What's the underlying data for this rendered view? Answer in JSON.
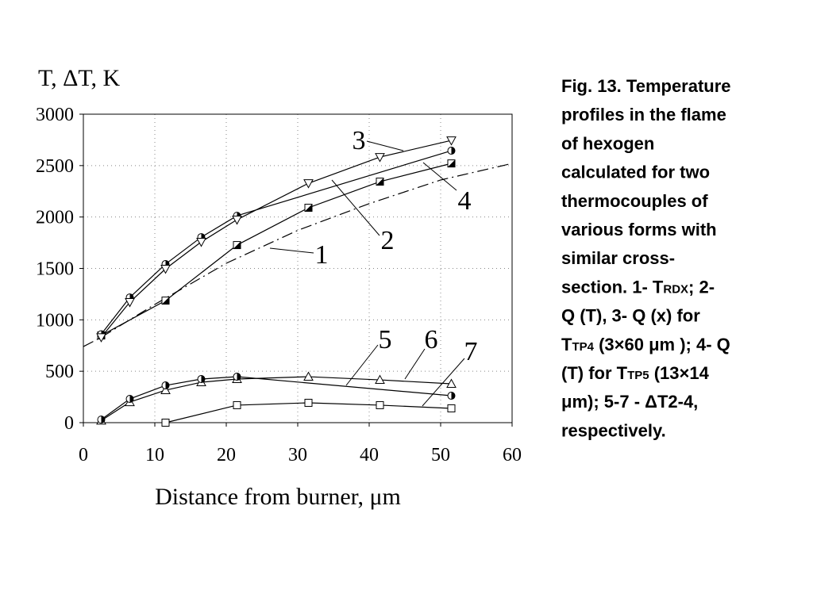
{
  "chart_data": {
    "type": "line",
    "y_label": "T, ΔT, K",
    "x_label": "Distance from burner, μm",
    "xlim": [
      0,
      60
    ],
    "xticks": [
      0,
      10,
      20,
      30,
      40,
      50,
      60
    ],
    "ylim": [
      0,
      3000
    ],
    "yticks": [
      0,
      500,
      1000,
      1500,
      2000,
      2500,
      3000
    ],
    "grid": true,
    "series": [
      {
        "name": "1",
        "color": "#000000",
        "marker": "half-square",
        "x": [
          2.5,
          11.5,
          21.5,
          31.5,
          41.5,
          51.5
        ],
        "values": [
          848,
          1187,
          1727,
          2090,
          2344,
          2521
        ]
      },
      {
        "name": "2",
        "color": "#000000",
        "marker": "half-circle",
        "x": [
          2.5,
          6.5,
          11.5,
          16.5,
          21.5,
          51.5
        ],
        "values": [
          860,
          1218,
          1542,
          1804,
          2012,
          2645
        ]
      },
      {
        "name": "3",
        "color": "#000000",
        "marker": "triangle-down",
        "x": [
          2.5,
          6.5,
          11.5,
          16.5,
          21.5,
          31.5,
          41.5,
          51.5
        ],
        "values": [
          830,
          1172,
          1496,
          1758,
          1974,
          2328,
          2583,
          2745
        ]
      },
      {
        "name": "4",
        "color": "#000000",
        "marker": "none",
        "dash": "dashdot",
        "x": [
          0,
          2.5,
          10,
          20,
          30,
          40,
          50,
          60
        ],
        "values": [
          740,
          830,
          1150,
          1550,
          1870,
          2130,
          2360,
          2521
        ]
      },
      {
        "name": "5",
        "color": "#000000",
        "marker": "triangle",
        "x": [
          2.5,
          6.5,
          11.5,
          16.5,
          21.5,
          31.5,
          41.5,
          51.5
        ],
        "values": [
          20,
          200,
          316,
          393,
          424,
          447,
          416,
          378
        ]
      },
      {
        "name": "6",
        "color": "#000000",
        "marker": "half-circle",
        "x": [
          2.5,
          6.5,
          11.5,
          16.5,
          21.5,
          51.5
        ],
        "values": [
          30,
          231,
          362,
          424,
          447,
          262
        ]
      },
      {
        "name": "7",
        "color": "#000000",
        "marker": "square",
        "x": [
          11.5,
          21.5,
          31.5,
          41.5,
          51.5
        ],
        "values": [
          0,
          170,
          193,
          170,
          139
        ]
      }
    ]
  },
  "caption_lines": [
    [
      {
        "t": "Fig. 13. Temperature"
      }
    ],
    [
      {
        "t": "profiles in the flame"
      }
    ],
    [
      {
        "t": "of hexogen"
      }
    ],
    [
      {
        "t": "calculated for two"
      }
    ],
    [
      {
        "t": "thermocouples of"
      }
    ],
    [
      {
        "t": "various forms with"
      }
    ],
    [
      {
        "t": "similar cross-"
      }
    ],
    [
      {
        "t": "section. 1- T"
      },
      {
        "sub": "RDX"
      },
      {
        "t": "; 2-"
      }
    ],
    [
      {
        "t": "Q (T), 3- Q (x) for"
      }
    ],
    [
      {
        "t": "T"
      },
      {
        "sub": "TP4"
      },
      {
        "t": " (3×60 μm ); 4- Q"
      }
    ],
    [
      {
        "t": "(T) for T"
      },
      {
        "sub": "TP5"
      },
      {
        "t": " (13×14"
      }
    ],
    [
      {
        "t": "μm); 5-7 - ΔT2-4,"
      }
    ],
    [
      {
        "t": "respectively."
      }
    ]
  ]
}
